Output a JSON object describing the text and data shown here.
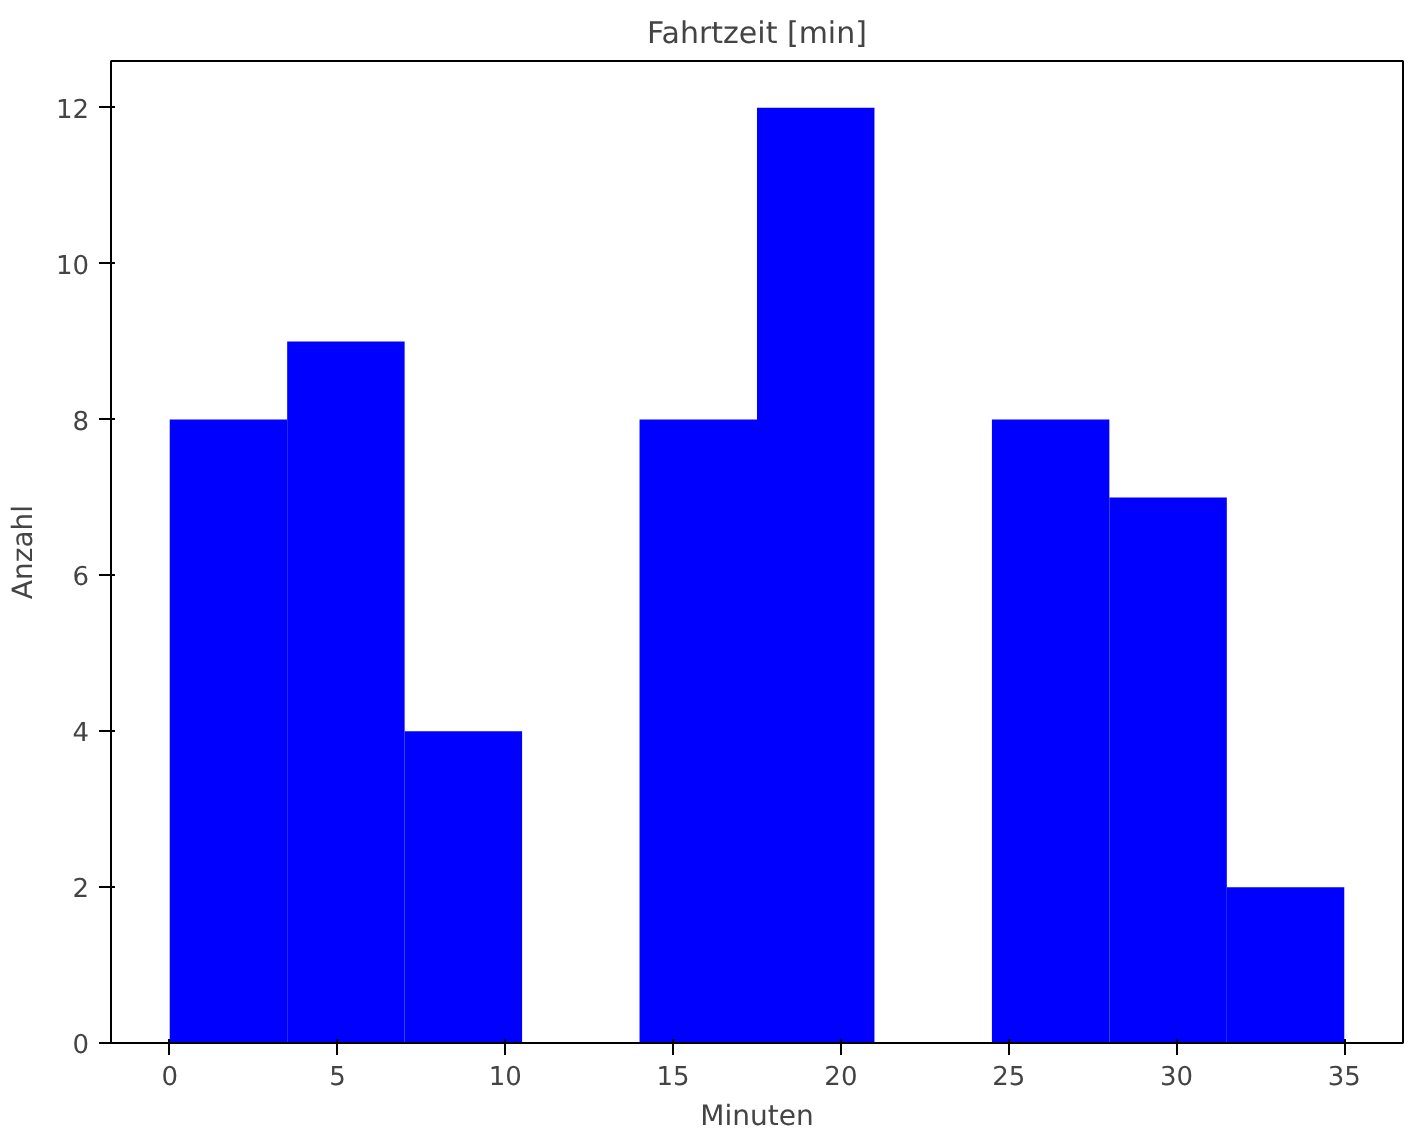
{
  "chart_data": {
    "type": "histogram",
    "title": "Fahrtzeit [min]",
    "xlabel": "Minuten",
    "ylabel": "Anzahl",
    "bins": [
      0,
      3.5,
      7,
      10.5,
      14,
      17.5,
      21,
      24.5,
      28,
      31.5,
      35
    ],
    "values": [
      8,
      9,
      4,
      0,
      8,
      12,
      0,
      8,
      7,
      2
    ],
    "color": "#0000ff",
    "xlim": [
      -1.75,
      36.75
    ],
    "ylim": [
      0,
      12.6
    ],
    "xticks": [
      0,
      5,
      10,
      15,
      20,
      25,
      30,
      35
    ],
    "yticks": [
      0,
      2,
      4,
      6,
      8,
      10,
      12
    ],
    "grid": false
  }
}
